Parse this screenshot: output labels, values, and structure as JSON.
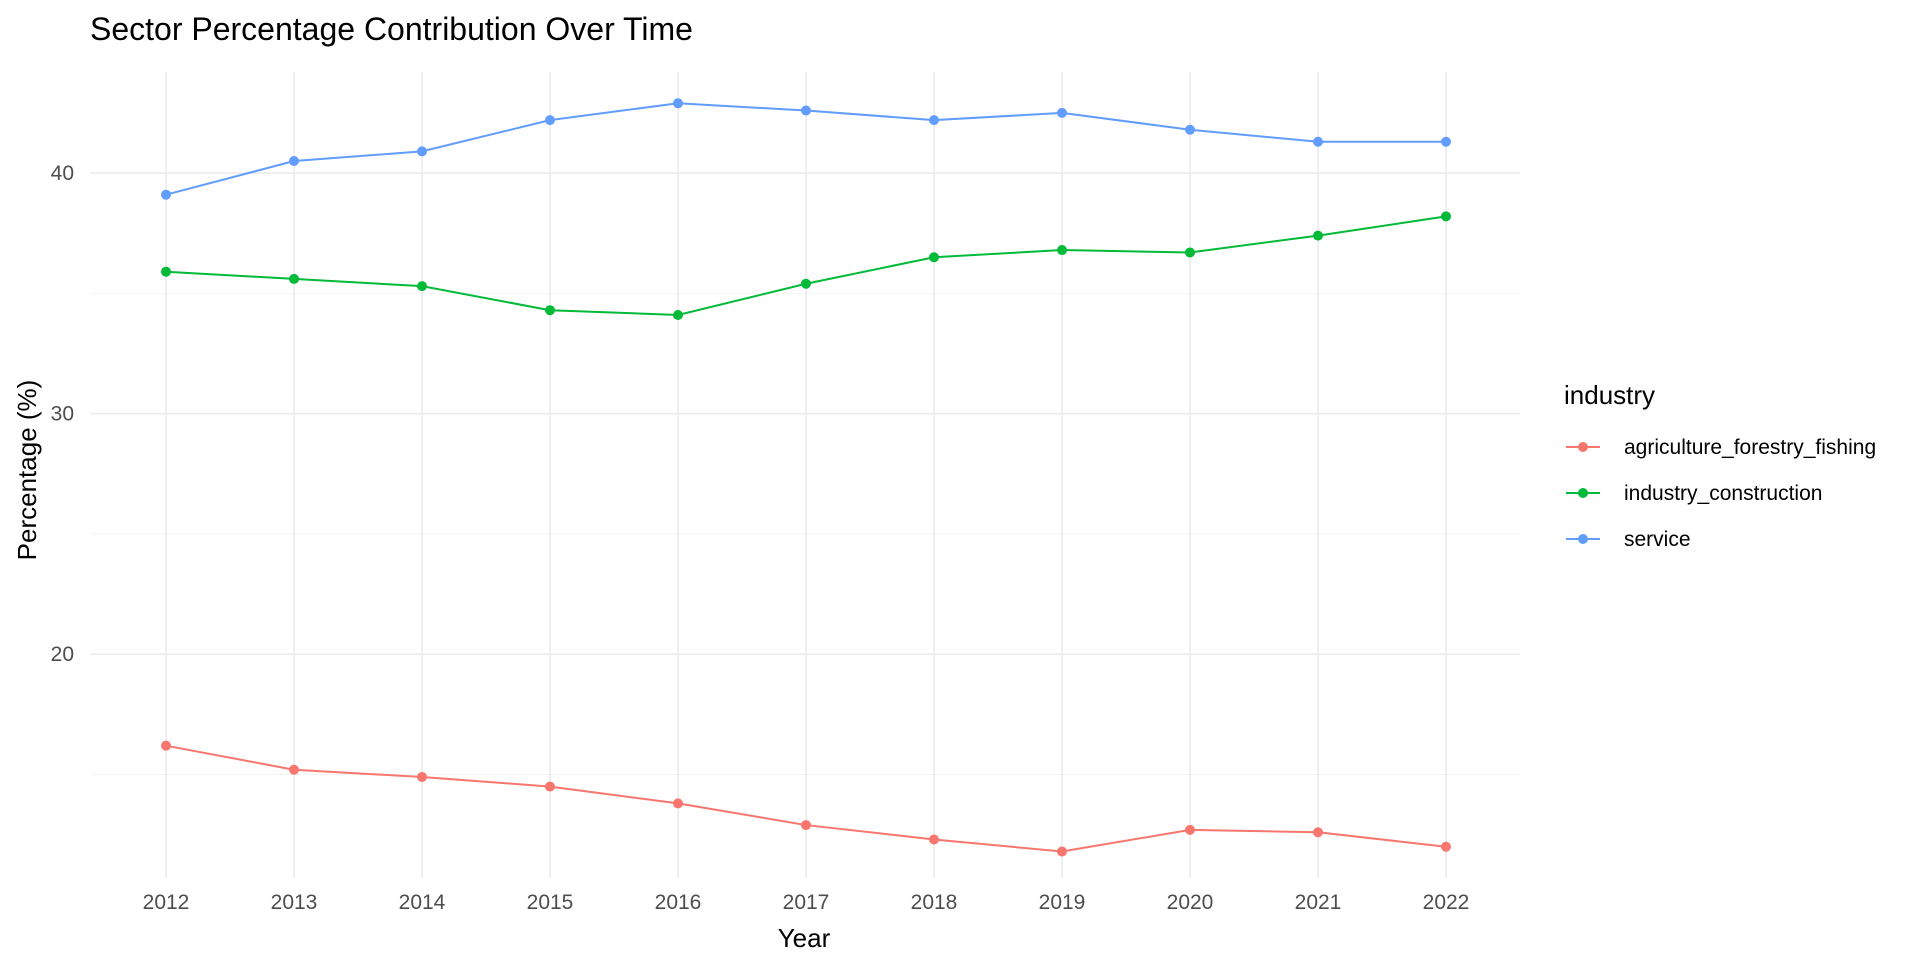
{
  "chart_data": {
    "type": "line",
    "title": "Sector Percentage Contribution Over Time",
    "xlabel": "Year",
    "ylabel": "Percentage (%)",
    "x": [
      2012,
      2013,
      2014,
      2015,
      2016,
      2017,
      2018,
      2019,
      2020,
      2021,
      2022
    ],
    "y_ticks": [
      20,
      30,
      40
    ],
    "ylim": [
      10.7,
      44.2
    ],
    "grid": true,
    "legend": {
      "title": "industry",
      "position": "right"
    },
    "series": [
      {
        "name": "agriculture_forestry_fishing",
        "color": "#F8766D",
        "values": [
          16.2,
          15.2,
          14.9,
          14.5,
          13.8,
          12.9,
          12.3,
          11.8,
          12.7,
          12.6,
          12.0
        ]
      },
      {
        "name": "industry_construction",
        "color": "#00BA38",
        "values": [
          35.9,
          35.6,
          35.3,
          34.3,
          34.1,
          35.4,
          36.5,
          36.8,
          36.7,
          37.4,
          38.2
        ]
      },
      {
        "name": "service",
        "color": "#619CFF",
        "values": [
          39.1,
          40.5,
          40.9,
          42.2,
          42.9,
          42.6,
          42.2,
          42.5,
          41.8,
          41.3,
          41.3
        ]
      }
    ]
  }
}
